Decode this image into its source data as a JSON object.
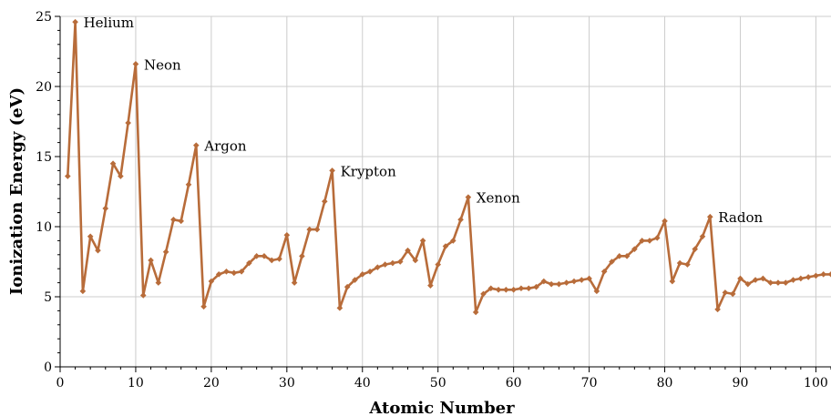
{
  "chart_data": {
    "type": "line",
    "title": "",
    "xlabel": "Atomic Number",
    "ylabel": "Ionization Energy (eV)",
    "xlim": [
      0,
      102
    ],
    "ylim": [
      0,
      25
    ],
    "x_ticks": [
      0,
      10,
      20,
      30,
      40,
      50,
      60,
      70,
      80,
      90,
      100
    ],
    "y_ticks": [
      0,
      5,
      10,
      15,
      20,
      25
    ],
    "grid": true,
    "legend": "none",
    "line_color": "#b86c3a",
    "series": [
      {
        "x": [
          1,
          2,
          3,
          4,
          5,
          6,
          7,
          8,
          9,
          10,
          11,
          12,
          13,
          14,
          15,
          16,
          17,
          18,
          19,
          20,
          21,
          22,
          23,
          24,
          25,
          26,
          27,
          28,
          29,
          30,
          31,
          32,
          33,
          34,
          35,
          36,
          37,
          38,
          39,
          40,
          41,
          42,
          43,
          44,
          45,
          46,
          47,
          48,
          49,
          50,
          51,
          52,
          53,
          54,
          55,
          56,
          57,
          58,
          59,
          60,
          61,
          62,
          63,
          64,
          65,
          66,
          67,
          68,
          69,
          70,
          71,
          72,
          73,
          74,
          75,
          76,
          77,
          78,
          79,
          80,
          81,
          82,
          83,
          84,
          85,
          86,
          87,
          88,
          89,
          90,
          91,
          92,
          93,
          94,
          95,
          96,
          97,
          98,
          99,
          100,
          101,
          102
        ],
        "values": [
          13.6,
          24.6,
          5.4,
          9.3,
          8.3,
          11.3,
          14.5,
          13.6,
          17.4,
          21.6,
          5.1,
          7.6,
          6.0,
          8.2,
          10.5,
          10.4,
          13.0,
          15.8,
          4.3,
          6.1,
          6.6,
          6.8,
          6.7,
          6.8,
          7.4,
          7.9,
          7.9,
          7.6,
          7.7,
          9.4,
          6.0,
          7.9,
          9.8,
          9.8,
          11.8,
          14.0,
          4.2,
          5.7,
          6.2,
          6.6,
          6.8,
          7.1,
          7.3,
          7.4,
          7.5,
          8.3,
          7.6,
          9.0,
          5.8,
          7.3,
          8.6,
          9.0,
          10.5,
          12.1,
          3.9,
          5.2,
          5.6,
          5.5,
          5.5,
          5.5,
          5.6,
          5.6,
          5.7,
          6.1,
          5.9,
          5.9,
          6.0,
          6.1,
          6.2,
          6.3,
          5.4,
          6.8,
          7.5,
          7.9,
          7.9,
          8.4,
          9.0,
          9.0,
          9.2,
          10.4,
          6.1,
          7.4,
          7.3,
          8.4,
          9.3,
          10.7,
          4.1,
          5.3,
          5.2,
          6.3,
          5.9,
          6.2,
          6.3,
          6.0,
          6.0,
          6.0,
          6.2,
          6.3,
          6.4,
          6.5,
          6.6,
          6.6
        ]
      }
    ],
    "annotations": [
      {
        "x": 2,
        "y": 24.6,
        "label": "Helium"
      },
      {
        "x": 10,
        "y": 21.6,
        "label": "Neon"
      },
      {
        "x": 18,
        "y": 15.8,
        "label": "Argon"
      },
      {
        "x": 36,
        "y": 14.0,
        "label": "Krypton"
      },
      {
        "x": 54,
        "y": 12.1,
        "label": "Xenon"
      },
      {
        "x": 86,
        "y": 10.7,
        "label": "Radon"
      }
    ]
  }
}
